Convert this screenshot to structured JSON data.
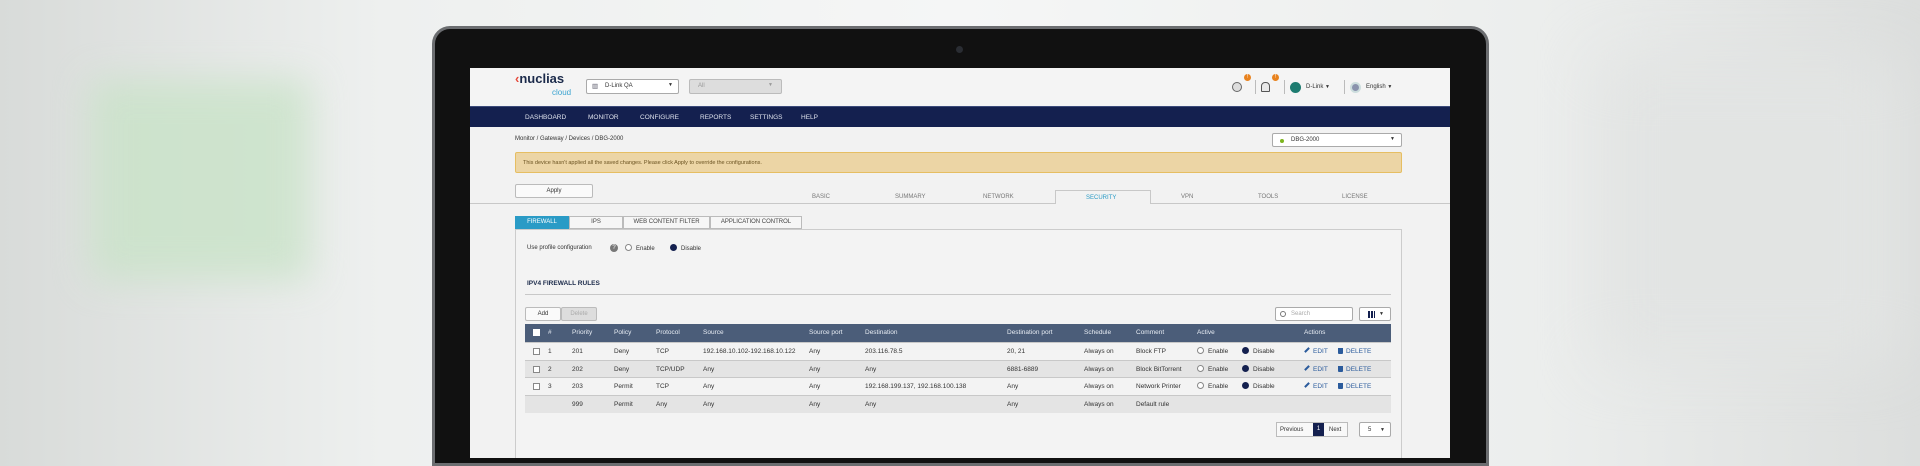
{
  "header": {
    "logo_text": "nuclias",
    "logo_sub": "cloud",
    "org_select": "D-Link QA",
    "site_select": "All",
    "user": "D-Link",
    "language": "English",
    "badge_alerts": "!",
    "badge_notifications": "!"
  },
  "nav": [
    "DASHBOARD",
    "MONITOR",
    "CONFIGURE",
    "REPORTS",
    "SETTINGS",
    "HELP"
  ],
  "breadcrumb": "Monitor  /  Gateway  /  Devices  /  DBG-2000",
  "device_select": "DBG-2000",
  "alert": "This device hasn't applied all the saved changes. Please click Apply to override the configurations.",
  "apply_label": "Apply",
  "tabs": [
    "BASIC",
    "SUMMARY",
    "NETWORK",
    "SECURITY",
    "VPN",
    "TOOLS",
    "LICENSE"
  ],
  "active_tab": "SECURITY",
  "subtabs": [
    "FIREWALL",
    "IPS",
    "WEB CONTENT FILTER",
    "APPLICATION CONTROL"
  ],
  "profile": {
    "label": "Use profile configuration",
    "enable": "Enable",
    "disable": "Disable"
  },
  "section_title": "IPV4 FIREWALL RULES",
  "toolbar": {
    "add": "Add",
    "delete": "Delete",
    "search_placeholder": "Search"
  },
  "table": {
    "headers": [
      "#",
      "Priority",
      "Policy",
      "Protocol",
      "Source",
      "Source port",
      "Destination",
      "Destination port",
      "Schedule",
      "Comment",
      "Active",
      "Actions"
    ],
    "rows": [
      {
        "num": "1",
        "priority": "201",
        "policy": "Deny",
        "protocol": "TCP",
        "source": "192.168.10.102-192.168.10.122",
        "sport": "Any",
        "dest": "203.116.78.5",
        "dport": "20, 21",
        "schedule": "Always on",
        "comment": "Block FTP",
        "enable": "Enable",
        "disable": "Disable",
        "edit": "EDIT",
        "delete": "DELETE"
      },
      {
        "num": "2",
        "priority": "202",
        "policy": "Deny",
        "protocol": "TCP/UDP",
        "source": "Any",
        "sport": "Any",
        "dest": "Any",
        "dport": "6881-6889",
        "schedule": "Always on",
        "comment": "Block BitTorrent",
        "enable": "Enable",
        "disable": "Disable",
        "edit": "EDIT",
        "delete": "DELETE"
      },
      {
        "num": "3",
        "priority": "203",
        "policy": "Permit",
        "protocol": "TCP",
        "source": "Any",
        "sport": "Any",
        "dest": "192.168.199.137, 192.168.100.138",
        "dport": "Any",
        "schedule": "Always on",
        "comment": "Network Printer",
        "enable": "Enable",
        "disable": "Disable",
        "edit": "EDIT",
        "delete": "DELETE"
      },
      {
        "num": "",
        "priority": "999",
        "policy": "Permit",
        "protocol": "Any",
        "source": "Any",
        "sport": "Any",
        "dest": "Any",
        "dport": "Any",
        "schedule": "Always on",
        "comment": "Default rule"
      }
    ]
  },
  "pagination": {
    "previous": "Previous",
    "page": "1",
    "next": "Next",
    "per_page": "5"
  },
  "colors": {
    "nav": "#14204f",
    "table_header": "#4b5d79",
    "active_subtab": "#2a9bc6",
    "alert_bg": "#ecd5a5"
  }
}
